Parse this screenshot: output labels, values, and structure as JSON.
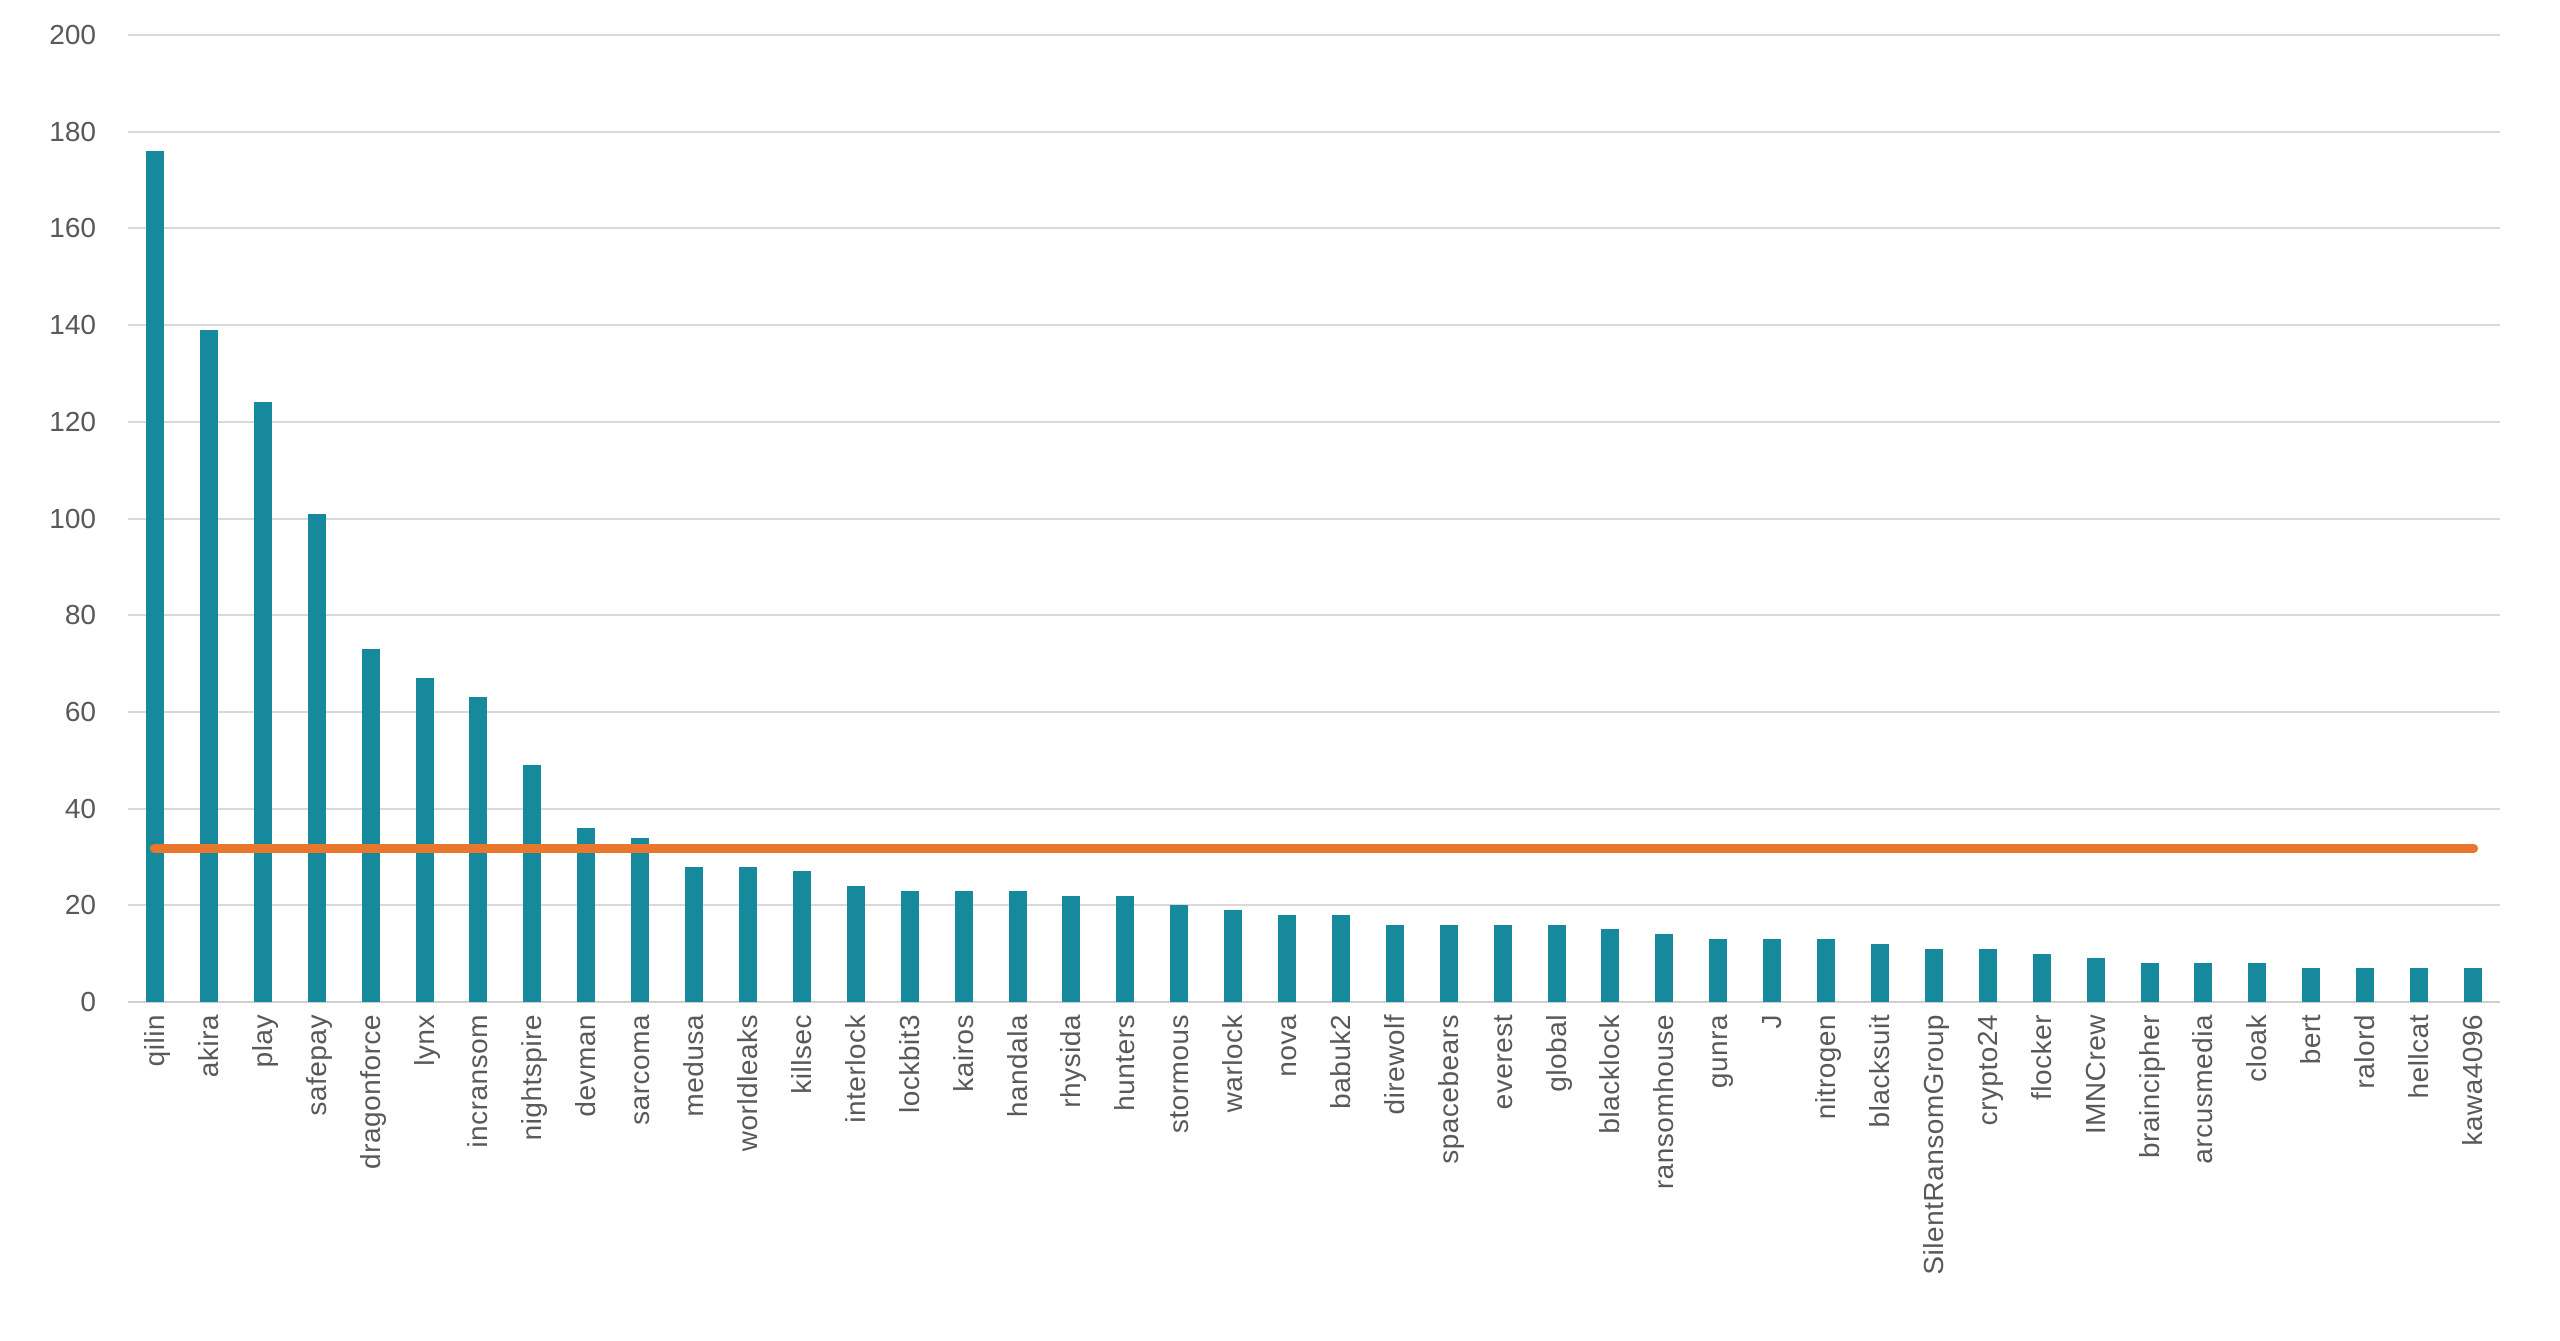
{
  "chart_data": {
    "type": "bar",
    "title": "",
    "xlabel": "",
    "ylabel": "",
    "categories": [
      "qilin",
      "akira",
      "play",
      "safepay",
      "dragonforce",
      "lynx",
      "incransom",
      "nightspire",
      "devman",
      "sarcoma",
      "medusa",
      "worldleaks",
      "killsec",
      "interlock",
      "lockbit3",
      "kairos",
      "handala",
      "rhysida",
      "hunters",
      "stormous",
      "warlock",
      "nova",
      "babuk2",
      "direwolf",
      "spacebears",
      "everest",
      "global",
      "blacklock",
      "ransomhouse",
      "gunra",
      "J",
      "nitrogen",
      "blacksuit",
      "SilentRansomGroup",
      "crypto24",
      "flocker",
      "IMNCrew",
      "braincipher",
      "arcusmedia",
      "cloak",
      "bert",
      "ralord",
      "hellcat",
      "kawa4096"
    ],
    "values": [
      176,
      139,
      124,
      101,
      73,
      67,
      63,
      49,
      36,
      34,
      28,
      28,
      27,
      24,
      23,
      23,
      23,
      22,
      22,
      20,
      19,
      18,
      18,
      16,
      16,
      16,
      16,
      15,
      14,
      13,
      13,
      13,
      12,
      11,
      11,
      10,
      9,
      8,
      8,
      8,
      7,
      7,
      7,
      7
    ],
    "ylim": [
      0,
      200
    ],
    "yticks": [
      0,
      20,
      40,
      60,
      80,
      100,
      120,
      140,
      160,
      180,
      200
    ],
    "grid": true,
    "legend": "none",
    "bar_color": "#17899c",
    "grid_color": "#d9d9d9",
    "text_color": "#595959",
    "reference_line": {
      "value": 31.7,
      "color": "#e8762c"
    }
  }
}
